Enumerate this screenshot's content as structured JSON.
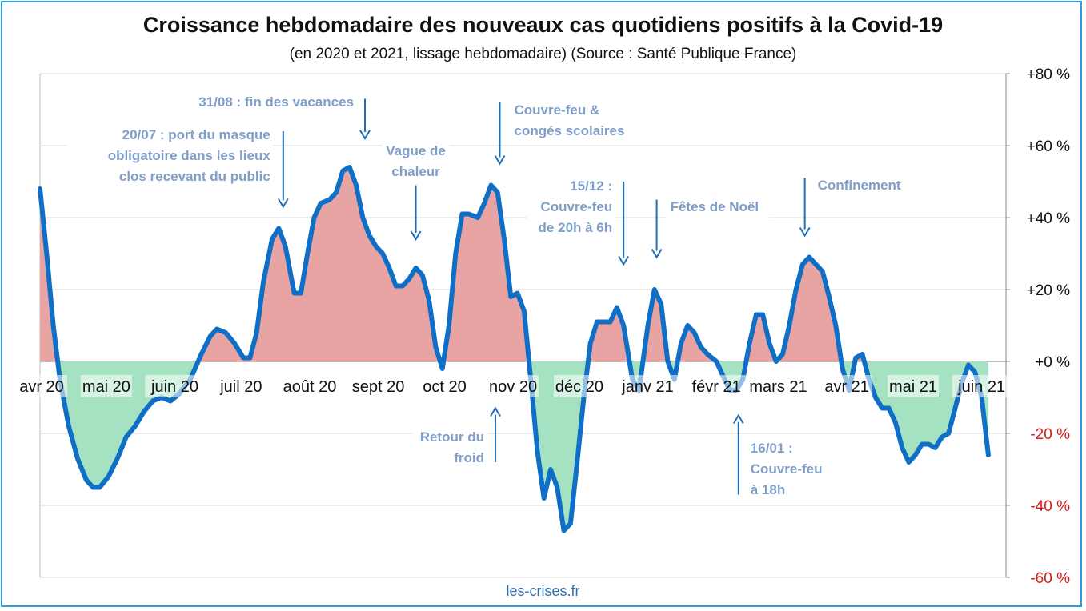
{
  "title": "Croissance hebdomadaire des nouveaux cas quotidiens positifs à la Covid-19",
  "subtitle": "(en 2020 et 2021, lissage hebdomadaire) (Source : Santé Publique France)",
  "footer": "les-crises.fr",
  "colors": {
    "line": "#0f6fc6",
    "positive_fill": "#e8a3a3",
    "negative_fill": "#a5e2c2",
    "annotation": "#7f9ec8",
    "arrow": "#1f6fb6",
    "negative_tick": "#d81b1b",
    "border": "#2e9fd8"
  },
  "chart_data": {
    "type": "area",
    "title": "Croissance hebdomadaire des nouveaux cas quotidiens positifs à la Covid-19",
    "subtitle": "(en 2020 et 2021, lissage hebdomadaire) (Source : Santé Publique France)",
    "xlabel": "",
    "ylabel": "",
    "ylim": [
      -60,
      80
    ],
    "y_ticks": [
      {
        "value": 80,
        "label": "+80 %"
      },
      {
        "value": 60,
        "label": "+60 %"
      },
      {
        "value": 40,
        "label": "+40 %"
      },
      {
        "value": 20,
        "label": "+20 %"
      },
      {
        "value": 0,
        "label": "+0 %"
      },
      {
        "value": -20,
        "label": "-20 %"
      },
      {
        "value": -40,
        "label": "-40 %"
      },
      {
        "value": -60,
        "label": "-60 %"
      }
    ],
    "y_axis_position": "right",
    "grid": true,
    "legend": "none",
    "x_ticks": [
      {
        "date": "2020-04-01",
        "label": "avr 20"
      },
      {
        "date": "2020-05-01",
        "label": "mai 20"
      },
      {
        "date": "2020-06-01",
        "label": "juin 20"
      },
      {
        "date": "2020-07-01",
        "label": "juil 20"
      },
      {
        "date": "2020-08-01",
        "label": "août 20"
      },
      {
        "date": "2020-09-01",
        "label": "sept 20"
      },
      {
        "date": "2020-10-01",
        "label": "oct 20"
      },
      {
        "date": "2020-11-01",
        "label": "nov 20"
      },
      {
        "date": "2020-12-01",
        "label": "déc 20"
      },
      {
        "date": "2021-01-01",
        "label": "janv 21"
      },
      {
        "date": "2021-02-01",
        "label": "févr 21"
      },
      {
        "date": "2021-03-01",
        "label": "mars 21"
      },
      {
        "date": "2021-04-01",
        "label": "avr 21"
      },
      {
        "date": "2021-05-01",
        "label": "mai 21"
      },
      {
        "date": "2021-06-01",
        "label": "juin 21"
      }
    ],
    "x_range": [
      "2020-04-01",
      "2021-06-12"
    ],
    "series": [
      {
        "points": [
          [
            "2020-04-01",
            48
          ],
          [
            "2020-04-04",
            30
          ],
          [
            "2020-04-07",
            10
          ],
          [
            "2020-04-10",
            -5
          ],
          [
            "2020-04-14",
            -18
          ],
          [
            "2020-04-18",
            -27
          ],
          [
            "2020-04-22",
            -33
          ],
          [
            "2020-04-25",
            -35
          ],
          [
            "2020-04-28",
            -35
          ],
          [
            "2020-05-02",
            -32
          ],
          [
            "2020-05-06",
            -27
          ],
          [
            "2020-05-10",
            -21
          ],
          [
            "2020-05-14",
            -18
          ],
          [
            "2020-05-18",
            -14
          ],
          [
            "2020-05-22",
            -11
          ],
          [
            "2020-05-26",
            -10
          ],
          [
            "2020-05-30",
            -11
          ],
          [
            "2020-06-03",
            -9
          ],
          [
            "2020-06-08",
            -5
          ],
          [
            "2020-06-13",
            2
          ],
          [
            "2020-06-17",
            7
          ],
          [
            "2020-06-20",
            9
          ],
          [
            "2020-06-24",
            8
          ],
          [
            "2020-06-28",
            5
          ],
          [
            "2020-07-02",
            1
          ],
          [
            "2020-07-05",
            1
          ],
          [
            "2020-07-08",
            8
          ],
          [
            "2020-07-11",
            22
          ],
          [
            "2020-07-15",
            34
          ],
          [
            "2020-07-18",
            37
          ],
          [
            "2020-07-21",
            32
          ],
          [
            "2020-07-25",
            19
          ],
          [
            "2020-07-28",
            19
          ],
          [
            "2020-07-31",
            30
          ],
          [
            "2020-08-03",
            40
          ],
          [
            "2020-08-06",
            44
          ],
          [
            "2020-08-10",
            45
          ],
          [
            "2020-08-13",
            47
          ],
          [
            "2020-08-16",
            53
          ],
          [
            "2020-08-19",
            54
          ],
          [
            "2020-08-22",
            49
          ],
          [
            "2020-08-25",
            40
          ],
          [
            "2020-08-28",
            35
          ],
          [
            "2020-08-31",
            32
          ],
          [
            "2020-09-03",
            30
          ],
          [
            "2020-09-06",
            26
          ],
          [
            "2020-09-09",
            21
          ],
          [
            "2020-09-12",
            21
          ],
          [
            "2020-09-15",
            23
          ],
          [
            "2020-09-18",
            26
          ],
          [
            "2020-09-21",
            24
          ],
          [
            "2020-09-24",
            17
          ],
          [
            "2020-09-27",
            4
          ],
          [
            "2020-09-30",
            -2
          ],
          [
            "2020-10-03",
            10
          ],
          [
            "2020-10-06",
            30
          ],
          [
            "2020-10-09",
            41
          ],
          [
            "2020-10-12",
            41
          ],
          [
            "2020-10-16",
            40
          ],
          [
            "2020-10-19",
            44
          ],
          [
            "2020-10-22",
            49
          ],
          [
            "2020-10-25",
            47
          ],
          [
            "2020-10-28",
            34
          ],
          [
            "2020-10-31",
            18
          ],
          [
            "2020-11-03",
            19
          ],
          [
            "2020-11-06",
            14
          ],
          [
            "2020-11-09",
            -5
          ],
          [
            "2020-11-12",
            -25
          ],
          [
            "2020-11-15",
            -38
          ],
          [
            "2020-11-18",
            -30
          ],
          [
            "2020-11-21",
            -35
          ],
          [
            "2020-11-24",
            -47
          ],
          [
            "2020-11-27",
            -45
          ],
          [
            "2020-11-30",
            -28
          ],
          [
            "2020-12-03",
            -10
          ],
          [
            "2020-12-06",
            5
          ],
          [
            "2020-12-09",
            11
          ],
          [
            "2020-12-12",
            11
          ],
          [
            "2020-12-15",
            11
          ],
          [
            "2020-12-18",
            15
          ],
          [
            "2020-12-21",
            10
          ],
          [
            "2020-12-25",
            -5
          ],
          [
            "2020-12-28",
            -8
          ],
          [
            "2021-01-01",
            10
          ],
          [
            "2021-01-04",
            20
          ],
          [
            "2021-01-07",
            16
          ],
          [
            "2021-01-10",
            0
          ],
          [
            "2021-01-13",
            -5
          ],
          [
            "2021-01-16",
            5
          ],
          [
            "2021-01-19",
            10
          ],
          [
            "2021-01-22",
            8
          ],
          [
            "2021-01-25",
            4
          ],
          [
            "2021-01-28",
            2
          ],
          [
            "2021-02-01",
            0
          ],
          [
            "2021-02-04",
            -4
          ],
          [
            "2021-02-07",
            -8
          ],
          [
            "2021-02-10",
            -8
          ],
          [
            "2021-02-13",
            -5
          ],
          [
            "2021-02-16",
            5
          ],
          [
            "2021-02-19",
            13
          ],
          [
            "2021-02-22",
            13
          ],
          [
            "2021-02-25",
            5
          ],
          [
            "2021-02-28",
            0
          ],
          [
            "2021-03-03",
            2
          ],
          [
            "2021-03-06",
            10
          ],
          [
            "2021-03-09",
            20
          ],
          [
            "2021-03-12",
            27
          ],
          [
            "2021-03-15",
            29
          ],
          [
            "2021-03-18",
            27
          ],
          [
            "2021-03-21",
            25
          ],
          [
            "2021-03-24",
            18
          ],
          [
            "2021-03-27",
            10
          ],
          [
            "2021-03-30",
            -2
          ],
          [
            "2021-04-02",
            -8
          ],
          [
            "2021-04-05",
            1
          ],
          [
            "2021-04-08",
            2
          ],
          [
            "2021-04-11",
            -5
          ],
          [
            "2021-04-14",
            -10
          ],
          [
            "2021-04-17",
            -13
          ],
          [
            "2021-04-20",
            -13
          ],
          [
            "2021-04-23",
            -17
          ],
          [
            "2021-04-26",
            -24
          ],
          [
            "2021-04-29",
            -28
          ],
          [
            "2021-05-02",
            -26
          ],
          [
            "2021-05-05",
            -23
          ],
          [
            "2021-05-08",
            -23
          ],
          [
            "2021-05-11",
            -24
          ],
          [
            "2021-05-14",
            -21
          ],
          [
            "2021-05-17",
            -20
          ],
          [
            "2021-05-20",
            -13
          ],
          [
            "2021-05-23",
            -6
          ],
          [
            "2021-05-26",
            -1
          ],
          [
            "2021-05-29",
            -3
          ],
          [
            "2021-06-01",
            -10
          ],
          [
            "2021-06-04",
            -26
          ]
        ]
      }
    ],
    "annotations": [
      {
        "id": "masque",
        "lines": [
          "20/07 : port du masque",
          "obligatoire  dans les lieux",
          "clos recevant du public"
        ],
        "arrow_date": "2020-07-20",
        "arrow_from": 64,
        "arrow_to": 43
      },
      {
        "id": "vacances",
        "lines": [
          "31/08 : fin des vacances"
        ],
        "arrow_date": "2020-08-26",
        "arrow_from": 73,
        "arrow_to": 62
      },
      {
        "id": "chaleur",
        "lines": [
          "Vague de",
          "chaleur"
        ],
        "arrow_date": "2020-09-18",
        "arrow_from": 49,
        "arrow_to": 34
      },
      {
        "id": "couvrefeu-conges",
        "lines": [
          "Couvre-feu &",
          "congés scolaires"
        ],
        "arrow_date": "2020-10-26",
        "arrow_from": 72,
        "arrow_to": 55
      },
      {
        "id": "couvrefeu-20h",
        "lines": [
          "15/12 :",
          "Couvre-feu",
          "de 20h à 6h"
        ],
        "arrow_date": "2020-12-21",
        "arrow_from": 50,
        "arrow_to": 27
      },
      {
        "id": "noel",
        "lines": [
          "Fêtes de Noël"
        ],
        "arrow_date": "2021-01-05",
        "arrow_from": 45,
        "arrow_to": 29
      },
      {
        "id": "confinement",
        "lines": [
          "Confinement"
        ],
        "arrow_date": "2021-03-13",
        "arrow_from": 51,
        "arrow_to": 35
      },
      {
        "id": "froid",
        "lines": [
          "Retour du",
          "froid"
        ],
        "arrow_date": "2020-10-24",
        "arrow_from": -28,
        "arrow_to": -13
      },
      {
        "id": "couvrefeu-18h",
        "lines": [
          "16/01 :",
          "Couvre-feu",
          "à 18h"
        ],
        "arrow_date": "2021-02-11",
        "arrow_from": -37,
        "arrow_to": -15
      }
    ]
  }
}
